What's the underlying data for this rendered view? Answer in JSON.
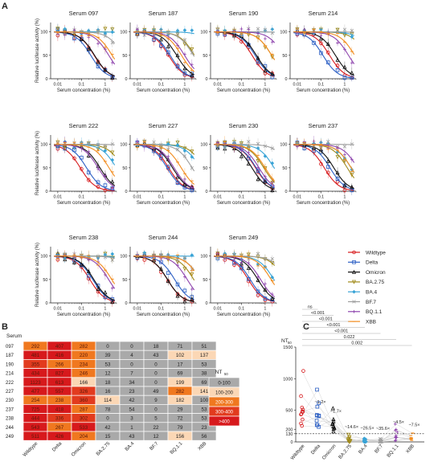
{
  "panels": {
    "a": "A",
    "b": "B",
    "c": "C"
  },
  "dose_response": {
    "y_axis_label": "Relative luciferase activity (%)",
    "x_axis_label": "Serum concentration (%)",
    "x_ticks": [
      "0.01",
      "0.1",
      "1"
    ],
    "y_ticks": [
      "0",
      "50",
      "100"
    ],
    "legend": [
      {
        "name": "Wildtype",
        "color": "#d7191c",
        "marker": "circle"
      },
      {
        "name": "Delta",
        "color": "#2c5fc4",
        "marker": "square"
      },
      {
        "name": "Omicron",
        "color": "#111111",
        "marker": "triangle"
      },
      {
        "name": "BA.2.75",
        "color": "#a08a1a",
        "marker": "triangle-down"
      },
      {
        "name": "BA.4",
        "color": "#38a3d6",
        "marker": "diamond"
      },
      {
        "name": "BF.7",
        "color": "#9e9e9e",
        "marker": "x"
      },
      {
        "name": "BQ.1.1",
        "color": "#8e44ad",
        "marker": "plus"
      },
      {
        "name": "XBB",
        "color": "#f28c1e",
        "marker": "dash"
      }
    ]
  },
  "chart_data": [
    {
      "type": "line",
      "description_of_grid": "11 small multiples of neutralization dose-response curves, one per serum",
      "x_scale": "log",
      "xlim": [
        0.005,
        3
      ],
      "ylim": [
        0,
        120
      ],
      "panels": [
        {
          "title": "Serum 097",
          "nt50": [
            292,
            407,
            282,
            0,
            0,
            18,
            71,
            51
          ]
        },
        {
          "title": "Serum 187",
          "nt50": [
            481,
            416,
            220,
            39,
            4,
            43,
            102,
            137
          ]
        },
        {
          "title": "Serum 190",
          "nt50": [
            355,
            266,
            234,
            53,
            0,
            0,
            17,
            53
          ]
        },
        {
          "title": "Serum 214",
          "nt50": [
            434,
            827,
            246,
            12,
            7,
            0,
            69,
            38
          ]
        },
        {
          "title": "Serum 222",
          "nt50": [
            1123,
            613,
            166,
            18,
            34,
            0,
            199,
            69
          ]
        },
        {
          "title": "Serum 227",
          "nt50": [
            477,
            557,
            326,
            16,
            23,
            49,
            282,
            141
          ]
        },
        {
          "title": "Serum 230",
          "nt50": [
            254,
            238,
            360,
            114,
            42,
            9,
            182,
            100
          ]
        },
        {
          "title": "Serum 237",
          "nt50": [
            725,
            418,
            287,
            78,
            54,
            0,
            29,
            53
          ]
        },
        {
          "title": "Serum 238",
          "nt50": [
            444,
            336,
            302,
            0,
            3,
            5,
            72,
            53
          ]
        },
        {
          "title": "Serum 244",
          "nt50": [
            543,
            267,
            533,
            42,
            1,
            22,
            79,
            23
          ]
        },
        {
          "title": "Serum 249",
          "nt50": [
            511,
            426,
            204,
            15,
            43,
            12,
            156,
            56
          ]
        }
      ],
      "series": [
        "Wildtype",
        "Delta",
        "Omicron",
        "BA.2.75",
        "BA.4",
        "BF.7",
        "BQ.1.1",
        "XBB"
      ]
    },
    {
      "type": "heatmap",
      "row_header": "Serum",
      "rows": [
        "097",
        "187",
        "190",
        "214",
        "222",
        "227",
        "230",
        "237",
        "238",
        "244",
        "249"
      ],
      "columns": [
        "Wildtype",
        "Delta",
        "Omicron",
        "BA.2.75",
        "BA.4",
        "BF.7",
        "BQ.1.1",
        "XBB"
      ],
      "values": [
        [
          292,
          407,
          282,
          0,
          0,
          18,
          71,
          51
        ],
        [
          481,
          416,
          220,
          39,
          4,
          43,
          102,
          137
        ],
        [
          355,
          266,
          234,
          53,
          0,
          0,
          17,
          53
        ],
        [
          434,
          827,
          246,
          12,
          7,
          0,
          69,
          38
        ],
        [
          1123,
          613,
          166,
          18,
          34,
          0,
          199,
          69
        ],
        [
          477,
          557,
          326,
          16,
          23,
          49,
          282,
          141
        ],
        [
          254,
          238,
          360,
          114,
          42,
          9,
          182,
          100
        ],
        [
          725,
          418,
          287,
          78,
          54,
          0,
          29,
          53
        ],
        [
          444,
          336,
          302,
          0,
          3,
          5,
          72,
          53
        ],
        [
          543,
          267,
          533,
          42,
          1,
          22,
          79,
          23
        ],
        [
          511,
          426,
          204,
          15,
          43,
          12,
          156,
          56
        ]
      ],
      "legend_title": "NT50",
      "legend": [
        {
          "label": "0-100",
          "color": "#a9a9a9"
        },
        {
          "label": "100-200",
          "color": "#fbd7b5"
        },
        {
          "label": "200-300",
          "color": "#f0781f"
        },
        {
          "label": ">400",
          "color": "#d7191c"
        }
      ],
      "legend_extra": {
        "label": "300-400",
        "color": "#e23b1e"
      }
    },
    {
      "type": "scatter",
      "ylabel": "NT50",
      "y_ticks": [
        0,
        130,
        200,
        500,
        1000,
        1500
      ],
      "categories": [
        "Wildtype",
        "Delta",
        "Omicron",
        "BA.2.75",
        "BA.4",
        "BF.7",
        "BQ.1.1",
        "XBB"
      ],
      "threshold": 130,
      "fold_changes": [
        "",
        "~1.2×",
        "~1.7×",
        "~14.6×",
        "~26.5×",
        "~35.6×",
        "~4.5×",
        "~7.5×"
      ],
      "comparisons": [
        {
          "label": "ns",
          "from": "Wildtype",
          "to": "Delta"
        },
        {
          "label": "<0.001",
          "from": "Wildtype",
          "to": "Omicron"
        },
        {
          "label": "<0.001",
          "from": "Wildtype",
          "to": "BA.2.75"
        },
        {
          "label": "<0.001",
          "from": "Wildtype",
          "to": "BA.4"
        },
        {
          "label": "<0.001",
          "from": "Wildtype",
          "to": "BF.7"
        },
        {
          "label": "0.022",
          "from": "Wildtype",
          "to": "BQ.1.1"
        },
        {
          "label": "0.002",
          "from": "Wildtype",
          "to": "XBB"
        }
      ]
    }
  ]
}
